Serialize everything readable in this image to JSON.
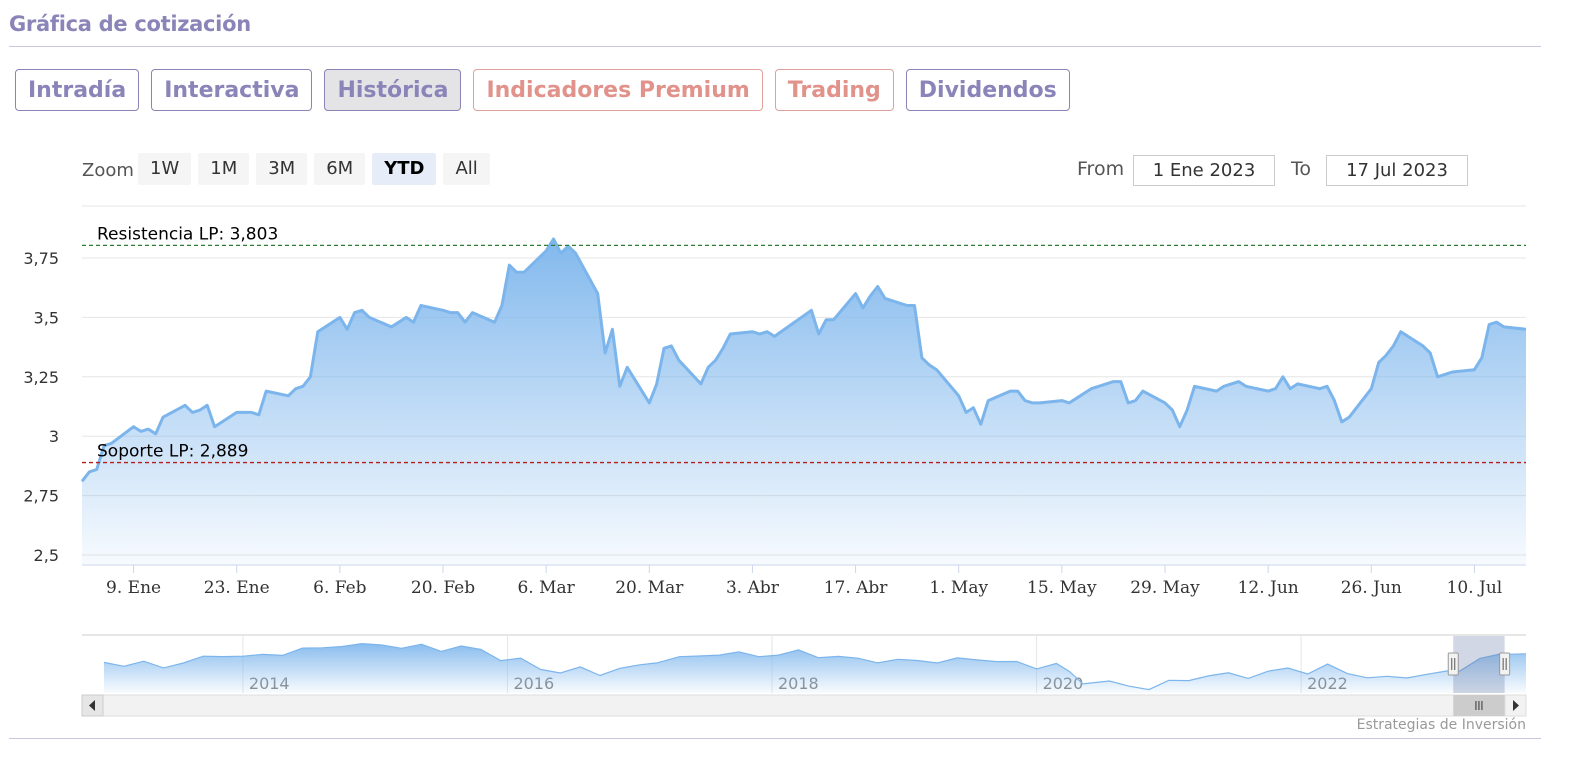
{
  "section_title": "Gráfica de cotización",
  "tabs": [
    {
      "label": "Intradía",
      "style": "normal"
    },
    {
      "label": "Interactiva",
      "style": "normal"
    },
    {
      "label": "Histórica",
      "style": "active"
    },
    {
      "label": "Indicadores Premium",
      "style": "premium"
    },
    {
      "label": "Trading",
      "style": "premium"
    },
    {
      "label": "Dividendos",
      "style": "normal"
    }
  ],
  "zoom": {
    "label": "Zoom",
    "buttons": [
      "1W",
      "1M",
      "3M",
      "6M",
      "YTD",
      "All"
    ],
    "selected": "YTD"
  },
  "range": {
    "from_label": "From",
    "from_value": "1 Ene 2023",
    "to_label": "To",
    "to_value": "17 Jul 2023"
  },
  "credit": "Estrategias de Inversión",
  "chart_data": {
    "type": "area",
    "x_start": "2023-01-02",
    "x_end": "2023-07-17",
    "x_ticks": [
      {
        "label": "9. Ene",
        "date": "2023-01-09"
      },
      {
        "label": "23. Ene",
        "date": "2023-01-23"
      },
      {
        "label": "6. Feb",
        "date": "2023-02-06"
      },
      {
        "label": "20. Feb",
        "date": "2023-02-20"
      },
      {
        "label": "6. Mar",
        "date": "2023-03-06"
      },
      {
        "label": "20. Mar",
        "date": "2023-03-20"
      },
      {
        "label": "3. Abr",
        "date": "2023-04-03"
      },
      {
        "label": "17. Abr",
        "date": "2023-04-17"
      },
      {
        "label": "1. May",
        "date": "2023-05-01"
      },
      {
        "label": "15. May",
        "date": "2023-05-15"
      },
      {
        "label": "29. May",
        "date": "2023-05-29"
      },
      {
        "label": "12. Jun",
        "date": "2023-06-12"
      },
      {
        "label": "26. Jun",
        "date": "2023-06-26"
      },
      {
        "label": "10. Jul",
        "date": "2023-07-10"
      }
    ],
    "y_ticks": [
      {
        "value": 2.5,
        "label": "2,5"
      },
      {
        "value": 2.75,
        "label": "2,75"
      },
      {
        "value": 3.0,
        "label": "3"
      },
      {
        "value": 3.25,
        "label": "3,25"
      },
      {
        "value": 3.5,
        "label": "3,5"
      },
      {
        "value": 3.75,
        "label": "3,75"
      }
    ],
    "ylim": [
      2.5,
      3.8
    ],
    "grid": true,
    "color": "#7cb5ec",
    "reference_lines": [
      {
        "label": "Resistencia LP: 3,803",
        "value": 3.803,
        "color": "#2e7d32"
      },
      {
        "label": "Soporte LP: 2,889",
        "value": 2.889,
        "color": "#b71c1c"
      }
    ],
    "series": [
      {
        "points": [
          [
            "2023-01-02",
            2.81
          ],
          [
            "2023-01-03",
            2.85
          ],
          [
            "2023-01-04",
            2.86
          ],
          [
            "2023-01-05",
            2.96
          ],
          [
            "2023-01-06",
            2.97
          ],
          [
            "2023-01-09",
            3.04
          ],
          [
            "2023-01-10",
            3.02
          ],
          [
            "2023-01-11",
            3.03
          ],
          [
            "2023-01-12",
            3.01
          ],
          [
            "2023-01-13",
            3.08
          ],
          [
            "2023-01-16",
            3.13
          ],
          [
            "2023-01-17",
            3.1
          ],
          [
            "2023-01-18",
            3.11
          ],
          [
            "2023-01-19",
            3.13
          ],
          [
            "2023-01-20",
            3.04
          ],
          [
            "2023-01-23",
            3.1
          ],
          [
            "2023-01-24",
            3.1
          ],
          [
            "2023-01-25",
            3.1
          ],
          [
            "2023-01-26",
            3.09
          ],
          [
            "2023-01-27",
            3.19
          ],
          [
            "2023-01-30",
            3.17
          ],
          [
            "2023-01-31",
            3.2
          ],
          [
            "2023-02-01",
            3.21
          ],
          [
            "2023-02-02",
            3.25
          ],
          [
            "2023-02-03",
            3.44
          ],
          [
            "2023-02-06",
            3.5
          ],
          [
            "2023-02-07",
            3.45
          ],
          [
            "2023-02-08",
            3.52
          ],
          [
            "2023-02-09",
            3.53
          ],
          [
            "2023-02-10",
            3.5
          ],
          [
            "2023-02-13",
            3.46
          ],
          [
            "2023-02-14",
            3.48
          ],
          [
            "2023-02-15",
            3.5
          ],
          [
            "2023-02-16",
            3.48
          ],
          [
            "2023-02-17",
            3.55
          ],
          [
            "2023-02-20",
            3.53
          ],
          [
            "2023-02-21",
            3.52
          ],
          [
            "2023-02-22",
            3.52
          ],
          [
            "2023-02-23",
            3.48
          ],
          [
            "2023-02-24",
            3.52
          ],
          [
            "2023-02-27",
            3.48
          ],
          [
            "2023-02-28",
            3.55
          ],
          [
            "2023-03-01",
            3.72
          ],
          [
            "2023-03-02",
            3.69
          ],
          [
            "2023-03-03",
            3.69
          ],
          [
            "2023-03-06",
            3.78
          ],
          [
            "2023-03-07",
            3.83
          ],
          [
            "2023-03-08",
            3.77
          ],
          [
            "2023-03-09",
            3.8
          ],
          [
            "2023-03-10",
            3.77
          ],
          [
            "2023-03-13",
            3.6
          ],
          [
            "2023-03-14",
            3.35
          ],
          [
            "2023-03-15",
            3.45
          ],
          [
            "2023-03-16",
            3.21
          ],
          [
            "2023-03-17",
            3.29
          ],
          [
            "2023-03-20",
            3.14
          ],
          [
            "2023-03-21",
            3.22
          ],
          [
            "2023-03-22",
            3.37
          ],
          [
            "2023-03-23",
            3.38
          ],
          [
            "2023-03-24",
            3.32
          ],
          [
            "2023-03-27",
            3.22
          ],
          [
            "2023-03-28",
            3.29
          ],
          [
            "2023-03-29",
            3.32
          ],
          [
            "2023-03-30",
            3.37
          ],
          [
            "2023-03-31",
            3.43
          ],
          [
            "2023-04-03",
            3.44
          ],
          [
            "2023-04-04",
            3.43
          ],
          [
            "2023-04-05",
            3.44
          ],
          [
            "2023-04-06",
            3.42
          ],
          [
            "2023-04-11",
            3.53
          ],
          [
            "2023-04-12",
            3.43
          ],
          [
            "2023-04-13",
            3.49
          ],
          [
            "2023-04-14",
            3.49
          ],
          [
            "2023-04-17",
            3.6
          ],
          [
            "2023-04-18",
            3.54
          ],
          [
            "2023-04-19",
            3.59
          ],
          [
            "2023-04-20",
            3.63
          ],
          [
            "2023-04-21",
            3.58
          ],
          [
            "2023-04-24",
            3.55
          ],
          [
            "2023-04-25",
            3.55
          ],
          [
            "2023-04-26",
            3.33
          ],
          [
            "2023-04-27",
            3.3
          ],
          [
            "2023-04-28",
            3.28
          ],
          [
            "2023-05-01",
            3.17
          ],
          [
            "2023-05-02",
            3.1
          ],
          [
            "2023-05-03",
            3.12
          ],
          [
            "2023-05-04",
            3.05
          ],
          [
            "2023-05-05",
            3.15
          ],
          [
            "2023-05-08",
            3.19
          ],
          [
            "2023-05-09",
            3.19
          ],
          [
            "2023-05-10",
            3.15
          ],
          [
            "2023-05-11",
            3.14
          ],
          [
            "2023-05-12",
            3.14
          ],
          [
            "2023-05-15",
            3.15
          ],
          [
            "2023-05-16",
            3.14
          ],
          [
            "2023-05-17",
            3.16
          ],
          [
            "2023-05-18",
            3.18
          ],
          [
            "2023-05-19",
            3.2
          ],
          [
            "2023-05-22",
            3.23
          ],
          [
            "2023-05-23",
            3.23
          ],
          [
            "2023-05-24",
            3.14
          ],
          [
            "2023-05-25",
            3.15
          ],
          [
            "2023-05-26",
            3.19
          ],
          [
            "2023-05-29",
            3.14
          ],
          [
            "2023-05-30",
            3.11
          ],
          [
            "2023-05-31",
            3.04
          ],
          [
            "2023-06-01",
            3.11
          ],
          [
            "2023-06-02",
            3.21
          ],
          [
            "2023-06-05",
            3.19
          ],
          [
            "2023-06-06",
            3.21
          ],
          [
            "2023-06-07",
            3.22
          ],
          [
            "2023-06-08",
            3.23
          ],
          [
            "2023-06-09",
            3.21
          ],
          [
            "2023-06-12",
            3.19
          ],
          [
            "2023-06-13",
            3.2
          ],
          [
            "2023-06-14",
            3.25
          ],
          [
            "2023-06-15",
            3.2
          ],
          [
            "2023-06-16",
            3.22
          ],
          [
            "2023-06-19",
            3.2
          ],
          [
            "2023-06-20",
            3.21
          ],
          [
            "2023-06-21",
            3.15
          ],
          [
            "2023-06-22",
            3.06
          ],
          [
            "2023-06-23",
            3.08
          ],
          [
            "2023-06-26",
            3.2
          ],
          [
            "2023-06-27",
            3.31
          ],
          [
            "2023-06-28",
            3.34
          ],
          [
            "2023-06-29",
            3.38
          ],
          [
            "2023-06-30",
            3.44
          ],
          [
            "2023-07-03",
            3.38
          ],
          [
            "2023-07-04",
            3.35
          ],
          [
            "2023-07-05",
            3.25
          ],
          [
            "2023-07-06",
            3.26
          ],
          [
            "2023-07-07",
            3.27
          ],
          [
            "2023-07-10",
            3.28
          ],
          [
            "2023-07-11",
            3.33
          ],
          [
            "2023-07-12",
            3.47
          ],
          [
            "2023-07-13",
            3.48
          ],
          [
            "2023-07-14",
            3.46
          ],
          [
            "2023-07-17",
            3.45
          ]
        ]
      }
    ],
    "navigator": {
      "x_ticks": [
        "2014",
        "2016",
        "2018",
        "2020",
        "2022"
      ],
      "start_year": 2012.8,
      "end_year": 2023.55,
      "window": [
        "2023-01-01",
        "2023-07-17"
      ],
      "series": [
        [
          2012.8,
          2.95
        ],
        [
          2012.95,
          2.9
        ],
        [
          2013.1,
          2.92
        ],
        [
          2013.25,
          2.85
        ],
        [
          2013.4,
          2.95
        ],
        [
          2013.55,
          3.05
        ],
        [
          2013.7,
          3.15
        ],
        [
          2013.85,
          3.08
        ],
        [
          2014.0,
          3.12
        ],
        [
          2014.15,
          3.18
        ],
        [
          2014.3,
          3.25
        ],
        [
          2014.45,
          3.32
        ],
        [
          2014.6,
          3.38
        ],
        [
          2014.75,
          3.35
        ],
        [
          2014.9,
          3.42
        ],
        [
          2015.05,
          3.3
        ],
        [
          2015.2,
          3.35
        ],
        [
          2015.35,
          3.28
        ],
        [
          2015.5,
          3.32
        ],
        [
          2015.65,
          3.25
        ],
        [
          2015.8,
          3.05
        ],
        [
          2015.95,
          3.0
        ],
        [
          2016.1,
          2.8
        ],
        [
          2016.25,
          2.72
        ],
        [
          2016.4,
          2.78
        ],
        [
          2016.55,
          2.68
        ],
        [
          2016.7,
          2.8
        ],
        [
          2016.85,
          2.85
        ],
        [
          2016.98,
          3.0
        ],
        [
          2017.15,
          3.05
        ],
        [
          2017.3,
          3.1
        ],
        [
          2017.45,
          3.18
        ],
        [
          2017.6,
          3.15
        ],
        [
          2017.75,
          3.12
        ],
        [
          2017.9,
          3.15
        ],
        [
          2018.05,
          3.2
        ],
        [
          2018.2,
          3.12
        ],
        [
          2018.35,
          3.08
        ],
        [
          2018.5,
          3.02
        ],
        [
          2018.65,
          3.0
        ],
        [
          2018.8,
          2.98
        ],
        [
          2018.95,
          3.0
        ],
        [
          2019.1,
          2.98
        ],
        [
          2019.25,
          3.0
        ],
        [
          2019.4,
          3.05
        ],
        [
          2019.55,
          2.98
        ],
        [
          2019.7,
          2.92
        ],
        [
          2019.85,
          2.85
        ],
        [
          2020.0,
          2.9
        ],
        [
          2020.1,
          2.7
        ],
        [
          2020.2,
          2.48
        ],
        [
          2020.4,
          2.44
        ],
        [
          2020.55,
          2.38
        ],
        [
          2020.7,
          2.32
        ],
        [
          2020.85,
          2.45
        ],
        [
          2021.0,
          2.55
        ],
        [
          2021.15,
          2.62
        ],
        [
          2021.3,
          2.65
        ],
        [
          2021.45,
          2.62
        ],
        [
          2021.6,
          2.7
        ],
        [
          2021.75,
          2.8
        ],
        [
          2021.9,
          2.72
        ],
        [
          2022.05,
          2.85
        ],
        [
          2022.2,
          2.7
        ],
        [
          2022.35,
          2.6
        ],
        [
          2022.5,
          2.55
        ],
        [
          2022.65,
          2.62
        ],
        [
          2022.8,
          2.65
        ],
        [
          2022.95,
          2.7
        ],
        [
          2023.05,
          2.8
        ],
        [
          2023.2,
          3.0
        ],
        [
          2023.35,
          3.15
        ],
        [
          2023.45,
          3.2
        ],
        [
          2023.55,
          3.1
        ]
      ]
    }
  }
}
